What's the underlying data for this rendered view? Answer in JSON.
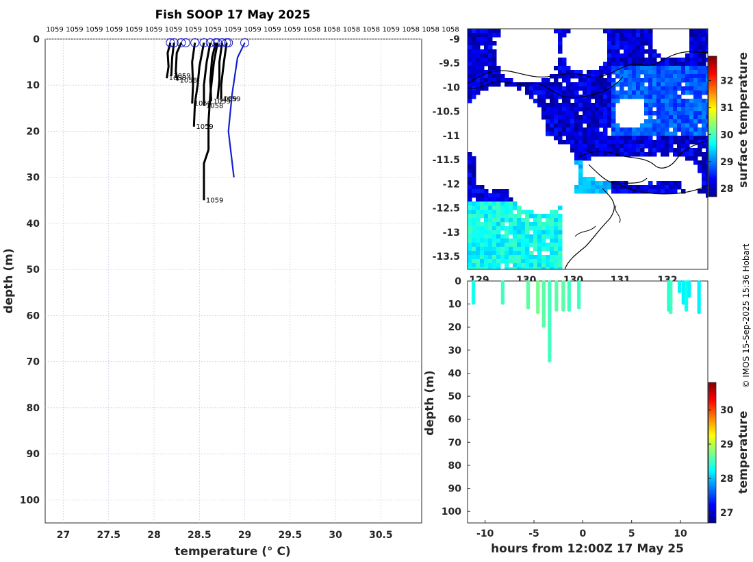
{
  "title": "Fish SOOP 17 May 2025",
  "credit": "© IMOS 15-Sep-2025 15:36 Hobart",
  "colors": {
    "profile": "#000000",
    "last_profile": "#1020d0",
    "marker": "#1010c0"
  },
  "chart_data": [
    {
      "type": "line",
      "name": "profiles",
      "xlabel": "temperature (° C)",
      "ylabel": "depth (m)",
      "xlim": [
        26.8,
        30.95
      ],
      "ylim": [
        105,
        0
      ],
      "xticks": [
        "27",
        "27.5",
        "28",
        "28.5",
        "29",
        "29.5",
        "30",
        "30.5"
      ],
      "yticks": [
        "0",
        "10",
        "20",
        "30",
        "40",
        "50",
        "60",
        "70",
        "80",
        "90",
        "100"
      ],
      "grid": true,
      "top_labels": [
        "1059",
        "1059",
        "1059",
        "1059",
        "1059",
        "1059",
        "1059",
        "1059",
        "1059",
        "1059",
        "1059",
        "1059",
        "1059",
        "1058",
        "1058",
        "1058",
        "1058",
        "1059",
        "1058",
        "1058",
        "1058"
      ],
      "series": [
        {
          "color": "#000000",
          "label": "1058",
          "points": [
            [
              28.18,
              0.8
            ],
            [
              28.15,
              3
            ],
            [
              28.16,
              6
            ],
            [
              28.14,
              8.5
            ]
          ]
        },
        {
          "color": "#000000",
          "label": "1059",
          "points": [
            [
              28.22,
              0.8
            ],
            [
              28.2,
              4
            ],
            [
              28.19,
              8
            ]
          ]
        },
        {
          "color": "#000000",
          "label": "1058",
          "points": [
            [
              28.3,
              0.8
            ],
            [
              28.25,
              3
            ],
            [
              28.24,
              7
            ],
            [
              28.26,
              9
            ]
          ]
        },
        {
          "color": "#000000",
          "label": "1059",
          "points": [
            [
              28.45,
              0.8
            ],
            [
              28.42,
              5
            ],
            [
              28.43,
              10
            ],
            [
              28.42,
              14
            ]
          ]
        },
        {
          "color": "#000000",
          "label": "1059",
          "points": [
            [
              28.55,
              0.8
            ],
            [
              28.5,
              6
            ],
            [
              28.48,
              10
            ],
            [
              28.45,
              14
            ],
            [
              28.44,
              19
            ]
          ]
        },
        {
          "color": "#000000",
          "label": "1058",
          "points": [
            [
              28.62,
              0.8
            ],
            [
              28.58,
              5
            ],
            [
              28.55,
              10
            ],
            [
              28.55,
              14.5
            ]
          ]
        },
        {
          "color": "#000000",
          "label": "1059",
          "points": [
            [
              28.68,
              0.8
            ],
            [
              28.64,
              4
            ],
            [
              28.62,
              9
            ],
            [
              28.63,
              13.5
            ]
          ]
        },
        {
          "color": "#000000",
          "label": "1059",
          "points": [
            [
              28.75,
              0.8
            ],
            [
              28.72,
              5
            ],
            [
              28.72,
              9
            ],
            [
              28.7,
              13
            ]
          ]
        },
        {
          "color": "#000000",
          "label": "1059",
          "points": [
            [
              28.8,
              0.8
            ],
            [
              28.77,
              5
            ],
            [
              28.74,
              10
            ],
            [
              28.74,
              13
            ]
          ]
        },
        {
          "color": "#000000",
          "label": "1059",
          "points": [
            [
              28.7,
              0.8
            ],
            [
              28.66,
              5
            ],
            [
              28.62,
              12
            ],
            [
              28.6,
              18
            ],
            [
              28.6,
              24
            ],
            [
              28.55,
              27
            ],
            [
              28.55,
              31
            ],
            [
              28.55,
              35
            ]
          ]
        },
        {
          "color": "#1020d0",
          "label": "",
          "points": [
            [
              29.0,
              0.8
            ],
            [
              28.92,
              4
            ],
            [
              28.86,
              12
            ],
            [
              28.82,
              20
            ],
            [
              28.88,
              30
            ]
          ]
        }
      ]
    },
    {
      "type": "heatmap",
      "name": "surface temperature map",
      "xticks": [
        "129",
        "130",
        "130",
        "131",
        "132"
      ],
      "yticks": [
        "-9",
        "-9.5",
        "-10",
        "-10.5",
        "-11",
        "-11.5",
        "-12",
        "-12.5",
        "-13",
        "-13.5"
      ],
      "colorbar_label": "surface temperature",
      "colorbar_ticks": [
        "28",
        "29",
        "30",
        "31",
        "32"
      ],
      "colorbar_range": [
        27.7,
        32.9
      ]
    },
    {
      "type": "scatter",
      "name": "depth vs time",
      "xlabel": "hours from 12:00Z 17 May 25",
      "ylabel": "depth (m)",
      "xlim": [
        -11.8,
        12.8
      ],
      "ylim": [
        105,
        0
      ],
      "xticks": [
        "-10",
        "-5",
        "0",
        "5",
        "10"
      ],
      "yticks": [
        "0",
        "10",
        "20",
        "30",
        "40",
        "50",
        "60",
        "70",
        "80",
        "90",
        "100"
      ],
      "colorbar_label": "temperature",
      "colorbar_ticks": [
        "27",
        "28",
        "29",
        "30"
      ],
      "colorbar_range": [
        26.7,
        30.8
      ],
      "casts": [
        {
          "hour": -11.2,
          "max_depth": 10,
          "temp": 28.3
        },
        {
          "hour": -8.2,
          "max_depth": 10,
          "temp": 28.5
        },
        {
          "hour": -5.6,
          "max_depth": 12,
          "temp": 28.6
        },
        {
          "hour": -4.6,
          "max_depth": 14,
          "temp": 28.7
        },
        {
          "hour": -4.0,
          "max_depth": 20,
          "temp": 28.6
        },
        {
          "hour": -3.4,
          "max_depth": 35,
          "temp": 28.5
        },
        {
          "hour": -2.7,
          "max_depth": 13,
          "temp": 28.6
        },
        {
          "hour": -2.0,
          "max_depth": 13,
          "temp": 28.6
        },
        {
          "hour": -1.4,
          "max_depth": 13,
          "temp": 28.5
        },
        {
          "hour": -0.4,
          "max_depth": 12,
          "temp": 28.5
        },
        {
          "hour": 8.8,
          "max_depth": 13,
          "temp": 28.4
        },
        {
          "hour": 9.0,
          "max_depth": 14,
          "temp": 28.5
        },
        {
          "hour": 9.9,
          "max_depth": 5,
          "temp": 28.2
        },
        {
          "hour": 10.3,
          "max_depth": 10,
          "temp": 28.2
        },
        {
          "hour": 10.6,
          "max_depth": 13,
          "temp": 28.3
        },
        {
          "hour": 10.9,
          "max_depth": 7,
          "temp": 28.2
        },
        {
          "hour": 11.9,
          "max_depth": 14,
          "temp": 28.2
        }
      ]
    }
  ]
}
